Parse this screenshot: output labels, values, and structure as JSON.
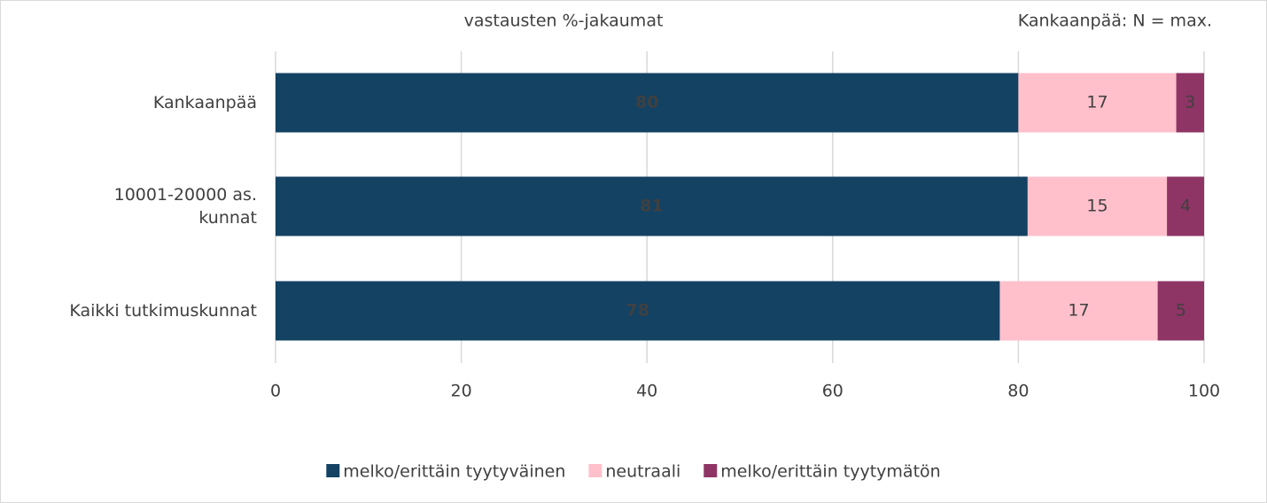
{
  "chart_data": {
    "type": "stacked_barh",
    "subtitle": "vastausten %-jakaumat",
    "annotation": "Kankaanpää: N = max.",
    "categories": [
      "Kankaanpää",
      "10001-20000 as.\nkunnat",
      "Kaikki tutkimuskunnat"
    ],
    "series": [
      {
        "name": "melko/erittäin tyytyväinen",
        "color": "#134263",
        "label_color": "#ffffff",
        "values": [
          80,
          81,
          78
        ]
      },
      {
        "name": "neutraali",
        "color": "#ffc0cc",
        "label_color": "#404040",
        "values": [
          17,
          15,
          17
        ]
      },
      {
        "name": "melko/erittäin tyytymätön",
        "color": "#8e3566",
        "label_color": "#404040",
        "values": [
          3,
          4,
          5
        ]
      }
    ],
    "xlim": [
      0,
      100
    ],
    "xticks": [
      0,
      20,
      40,
      60,
      80,
      100
    ],
    "grid": true,
    "legend": "bottom"
  }
}
